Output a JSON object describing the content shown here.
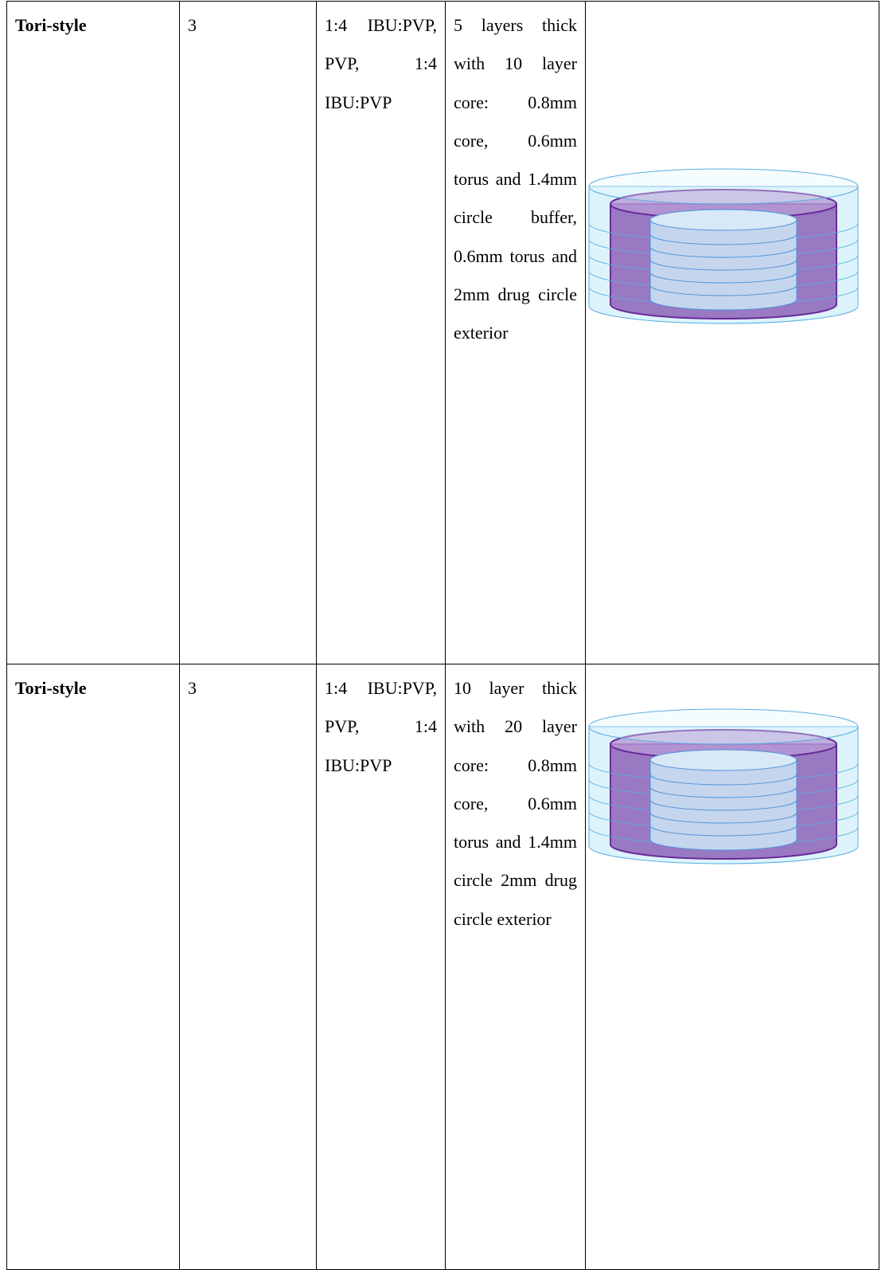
{
  "table": {
    "rows": [
      [
        "Tori-style",
        "3",
        "1:4 IBU:PVP, PVP, 1:4 IBU:PVP",
        "5 layers thick with 10 layer core: 0.8mm core, 0.6mm torus and 1.4mm circle buffer, 0.6mm torus and 2mm drug circle exterior"
      ],
      [
        "Tori-style",
        "3",
        "1:4 IBU:PVP, PVP, 1:4 IBU:PVP",
        "10 layer thick with 20 layer core: 0.8mm core, 0.6mm torus and 1.4mm circle 2mm drug circle exterior"
      ]
    ]
  }
}
